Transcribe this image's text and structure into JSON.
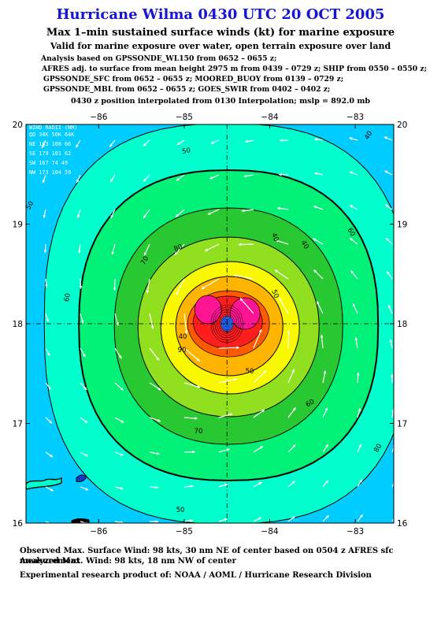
{
  "header": {
    "title": "Hurricane Wilma 0430 UTC 20 OCT 2005",
    "subtitle": "Max 1–min sustained surface winds (kt) for marine exposure",
    "subtitle2": "Valid for marine exposure over water, open terrain exposure over land",
    "analysis_lines": [
      "Analysis based on  GPSSONDE_WL150 from 0652 – 0655 z;",
      "AFRES adj. to surface from mean height 2975 m from 0439 – 0729 z;  SHIP from 0550 – 0550 z;",
      "GPSSONDE_SFC from 0652 – 0655 z;  MOORED_BUOY from 0139 – 0729 z;",
      "GPSSONDE_MBL from 0652 – 0655 z;  GOES_SWIR from 0402 – 0402 z;"
    ],
    "position_line": "0430 z position interpolated from 0130 Interpolation; mslp = 892.0 mb"
  },
  "map": {
    "lon_range": [
      -86.85,
      -82.55
    ],
    "lat_range": [
      16.0,
      20.0
    ],
    "lon_ticks": [
      -86,
      -85,
      -84,
      -83
    ],
    "lat_ticks": [
      16,
      17,
      18,
      19,
      20
    ],
    "lon_tick_labels": [
      "−86",
      "−85",
      "−84",
      "−83"
    ],
    "lat_tick_labels": [
      "16",
      "17",
      "18",
      "19",
      "20"
    ],
    "center": {
      "lon": -84.5,
      "lat": 18.0
    },
    "contour_labels": [
      "40",
      "50",
      "60",
      "70",
      "80",
      "90",
      "40",
      "50",
      "50",
      "60",
      "60",
      "70",
      "80",
      "50",
      "50",
      "40",
      "40"
    ],
    "colors": {
      "lt40": "#00ccff",
      "c40": "#00ffcc",
      "c50": "#00f078",
      "c60": "#28c832",
      "c70": "#90e020",
      "c80": "#f8f800",
      "c90": "#ffb400",
      "c100": "#ff5a00",
      "c110": "#ff1e1e",
      "c120": "#ff1493",
      "eye": "#0a3cc8",
      "land": "#000000"
    },
    "wind_radii": {
      "header": "WIND RADII (NM)",
      "columns": "QD 34K 50K 64K",
      "rows": [
        "NE 183 108  66",
        "SE 179 101  62",
        "SW 167  74  49",
        "NW 173 104  59"
      ]
    }
  },
  "footer": {
    "observed": "Observed Max. Surface Wind: 98 kts, 30 nm NE of center based on 0504 z AFRES sfc measurement",
    "analyzed": "Analyzed Max. Wind: 98 kts, 18 nm NW of center",
    "experimental": "Experimental research product of:  NOAA / AOML / Hurricane Research Division"
  }
}
